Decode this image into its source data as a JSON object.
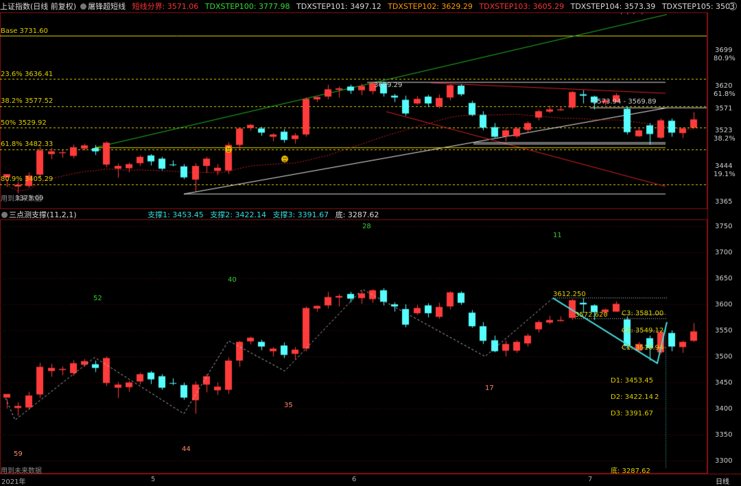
{
  "header": {
    "title": "上证指数(日线 前复权)",
    "indicator_name": "屠锋超短线",
    "items": [
      {
        "label": "短线分界: 3571.06",
        "color": "#ff3333"
      },
      {
        "label": "TDXSTEP100: 3777.98",
        "color": "#33dd33"
      },
      {
        "label": "TDXSTEP101: 3497.12",
        "color": "#dddddd"
      },
      {
        "label": "TDXSTEP102: 3629.29",
        "color": "#ff9900"
      },
      {
        "label": "TDXSTEP103: 3605.29",
        "color": "#ff3333"
      },
      {
        "label": "TDXSTEP104: 3573.39",
        "color": "#dddddd"
      },
      {
        "label": "TDXSTEP105: 3503",
        "color": "#dddddd"
      }
    ]
  },
  "sub_header": {
    "name": "三点测支撑(11,2,1)",
    "items": [
      {
        "label": "支撑1: 3453.45",
        "color": "#33dddd"
      },
      {
        "label": "支撑2: 3422.14",
        "color": "#33dddd"
      },
      {
        "label": "支撑3: 3391.67",
        "color": "#33dddd"
      },
      {
        "label": "底: 3287.62",
        "color": "#dddddd"
      }
    ]
  },
  "fib_levels": [
    {
      "label": "Base 3731.60",
      "value": 3731.6
    },
    {
      "label": "23.6% 3636.41",
      "value": 3636.41
    },
    {
      "label": "38.2% 3577.52",
      "value": 3577.52
    },
    {
      "label": "50% 3529.92",
      "value": 3529.92
    },
    {
      "label": "61.8% 3482.33",
      "value": 3482.33
    },
    {
      "label": "80.9% 3405.29",
      "value": 3405.29
    }
  ],
  "top_axis": [
    {
      "label": "3699",
      "value": 3699
    },
    {
      "label": "80.9%",
      "value": 3680
    },
    {
      "label": "3620",
      "value": 3620
    },
    {
      "label": "61.8%",
      "value": 3601
    },
    {
      "label": "3571",
      "value": 3571
    },
    {
      "label": "3523",
      "value": 3523
    },
    {
      "label": "38.2%",
      "value": 3504
    },
    {
      "label": "3444",
      "value": 3444
    },
    {
      "label": "19.1%",
      "value": 3425
    },
    {
      "label": "3365",
      "value": 3365
    }
  ],
  "bottom_axis": [
    "3750",
    "3700",
    "3650",
    "3600",
    "3550",
    "3500",
    "3450",
    "3400",
    "3350",
    "3300"
  ],
  "top_annotations": {
    "peak": "3629.29",
    "range": "3573.94 - 3569.89",
    "low": "3373.09",
    "future_note": "用到未来数据"
  },
  "bottom_annotations": {
    "future_note": "用到未来数据",
    "counts": [
      {
        "label": "59",
        "color": "#ff8866"
      },
      {
        "label": "52",
        "color": "#33cc33"
      },
      {
        "label": "44",
        "color": "#ff8866"
      },
      {
        "label": "40",
        "color": "#33cc33"
      },
      {
        "label": "35",
        "color": "#ff8866"
      },
      {
        "label": "28",
        "color": "#33cc33"
      },
      {
        "label": "17",
        "color": "#ff8866"
      },
      {
        "label": "11",
        "color": "#33cc33"
      }
    ],
    "peak": "3612.250",
    "c_peak": "3572.620",
    "c3": "C3: 3581.00",
    "c2": "C2: 3549.12",
    "c1": "C1: 3516.94",
    "d1": "D1: 3453.45",
    "d2": "D2: 3422.14",
    "d3": "D3: 3391.67",
    "bottom": "底: 3287.62",
    "d2_mark": "2"
  },
  "time_axis": [
    {
      "label": "2021年"
    },
    {
      "label": "5"
    },
    {
      "label": "6"
    },
    {
      "label": "7"
    }
  ],
  "period_button": "日线",
  "colors": {
    "up": "#ff3b3b",
    "down": "#55ffff",
    "fib": "#e0d000",
    "base": "#e0d000"
  },
  "chart_data": {
    "type": "candlestick",
    "candles": [
      [
        3421,
        3428,
        3418,
        3400
      ],
      [
        3401,
        3405,
        3412,
        3386
      ],
      [
        3402,
        3425,
        3432,
        3398
      ],
      [
        3427,
        3480,
        3488,
        3420
      ],
      [
        3472,
        3478,
        3486,
        3461
      ],
      [
        3474,
        3476,
        3481,
        3464
      ],
      [
        3468,
        3487,
        3493,
        3463
      ],
      [
        3484,
        3491,
        3495,
        3480
      ],
      [
        3485,
        3478,
        3492,
        3470
      ],
      [
        3449,
        3497,
        3500,
        3443
      ],
      [
        3440,
        3446,
        3451,
        3420
      ],
      [
        3441,
        3450,
        3453,
        3432
      ],
      [
        3452,
        3466,
        3469,
        3446
      ],
      [
        3469,
        3456,
        3472,
        3447
      ],
      [
        3462,
        3440,
        3466,
        3436
      ],
      [
        3449,
        3448,
        3458,
        3445
      ],
      [
        3445,
        3421,
        3450,
        3417
      ],
      [
        3416,
        3446,
        3452,
        3390
      ],
      [
        3446,
        3462,
        3466,
        3431
      ],
      [
        3435,
        3442,
        3450,
        3426
      ],
      [
        3436,
        3492,
        3498,
        3428
      ],
      [
        3492,
        3528,
        3530,
        3480
      ],
      [
        3529,
        3536,
        3538,
        3523
      ],
      [
        3528,
        3519,
        3532,
        3512
      ],
      [
        3510,
        3515,
        3518,
        3500
      ],
      [
        3521,
        3503,
        3527,
        3497
      ],
      [
        3505,
        3513,
        3518,
        3495
      ],
      [
        3515,
        3593,
        3596,
        3510
      ],
      [
        3592,
        3597,
        3598,
        3586
      ],
      [
        3598,
        3614,
        3624,
        3592
      ],
      [
        3613,
        3616,
        3620,
        3596
      ],
      [
        3620,
        3611,
        3624,
        3604
      ],
      [
        3612,
        3621,
        3626,
        3601
      ],
      [
        3610,
        3627,
        3629,
        3603
      ],
      [
        3627,
        3605,
        3631,
        3598
      ],
      [
        3600,
        3596,
        3604,
        3586
      ],
      [
        3591,
        3561,
        3600,
        3556
      ],
      [
        3583,
        3593,
        3599,
        3580
      ],
      [
        3598,
        3583,
        3602,
        3575
      ],
      [
        3576,
        3595,
        3603,
        3572
      ],
      [
        3596,
        3623,
        3625,
        3590
      ],
      [
        3622,
        3603,
        3625,
        3599
      ],
      [
        3584,
        3558,
        3589,
        3555
      ],
      [
        3558,
        3530,
        3566,
        3524
      ],
      [
        3531,
        3510,
        3540,
        3508
      ],
      [
        3511,
        3524,
        3530,
        3500
      ],
      [
        3511,
        3528,
        3531,
        3507
      ],
      [
        3525,
        3540,
        3544,
        3519
      ],
      [
        3552,
        3566,
        3569,
        3546
      ],
      [
        3565,
        3570,
        3578,
        3562
      ],
      [
        3568,
        3570,
        3577,
        3567
      ],
      [
        3574,
        3608,
        3610,
        3570
      ],
      [
        3603,
        3600,
        3612,
        3583
      ],
      [
        3598,
        3585,
        3600,
        3570
      ],
      [
        3585,
        3590,
        3592,
        3579
      ],
      [
        3586,
        3601,
        3606,
        3586
      ],
      [
        3571,
        3520,
        3577,
        3515
      ],
      [
        3511,
        3524,
        3528,
        3510
      ],
      [
        3535,
        3516,
        3540,
        3492
      ],
      [
        3508,
        3546,
        3550,
        3505
      ],
      [
        3545,
        3519,
        3550,
        3510
      ],
      [
        3518,
        3528,
        3530,
        3507
      ],
      [
        3530,
        3548,
        3564,
        3528
      ]
    ]
  }
}
